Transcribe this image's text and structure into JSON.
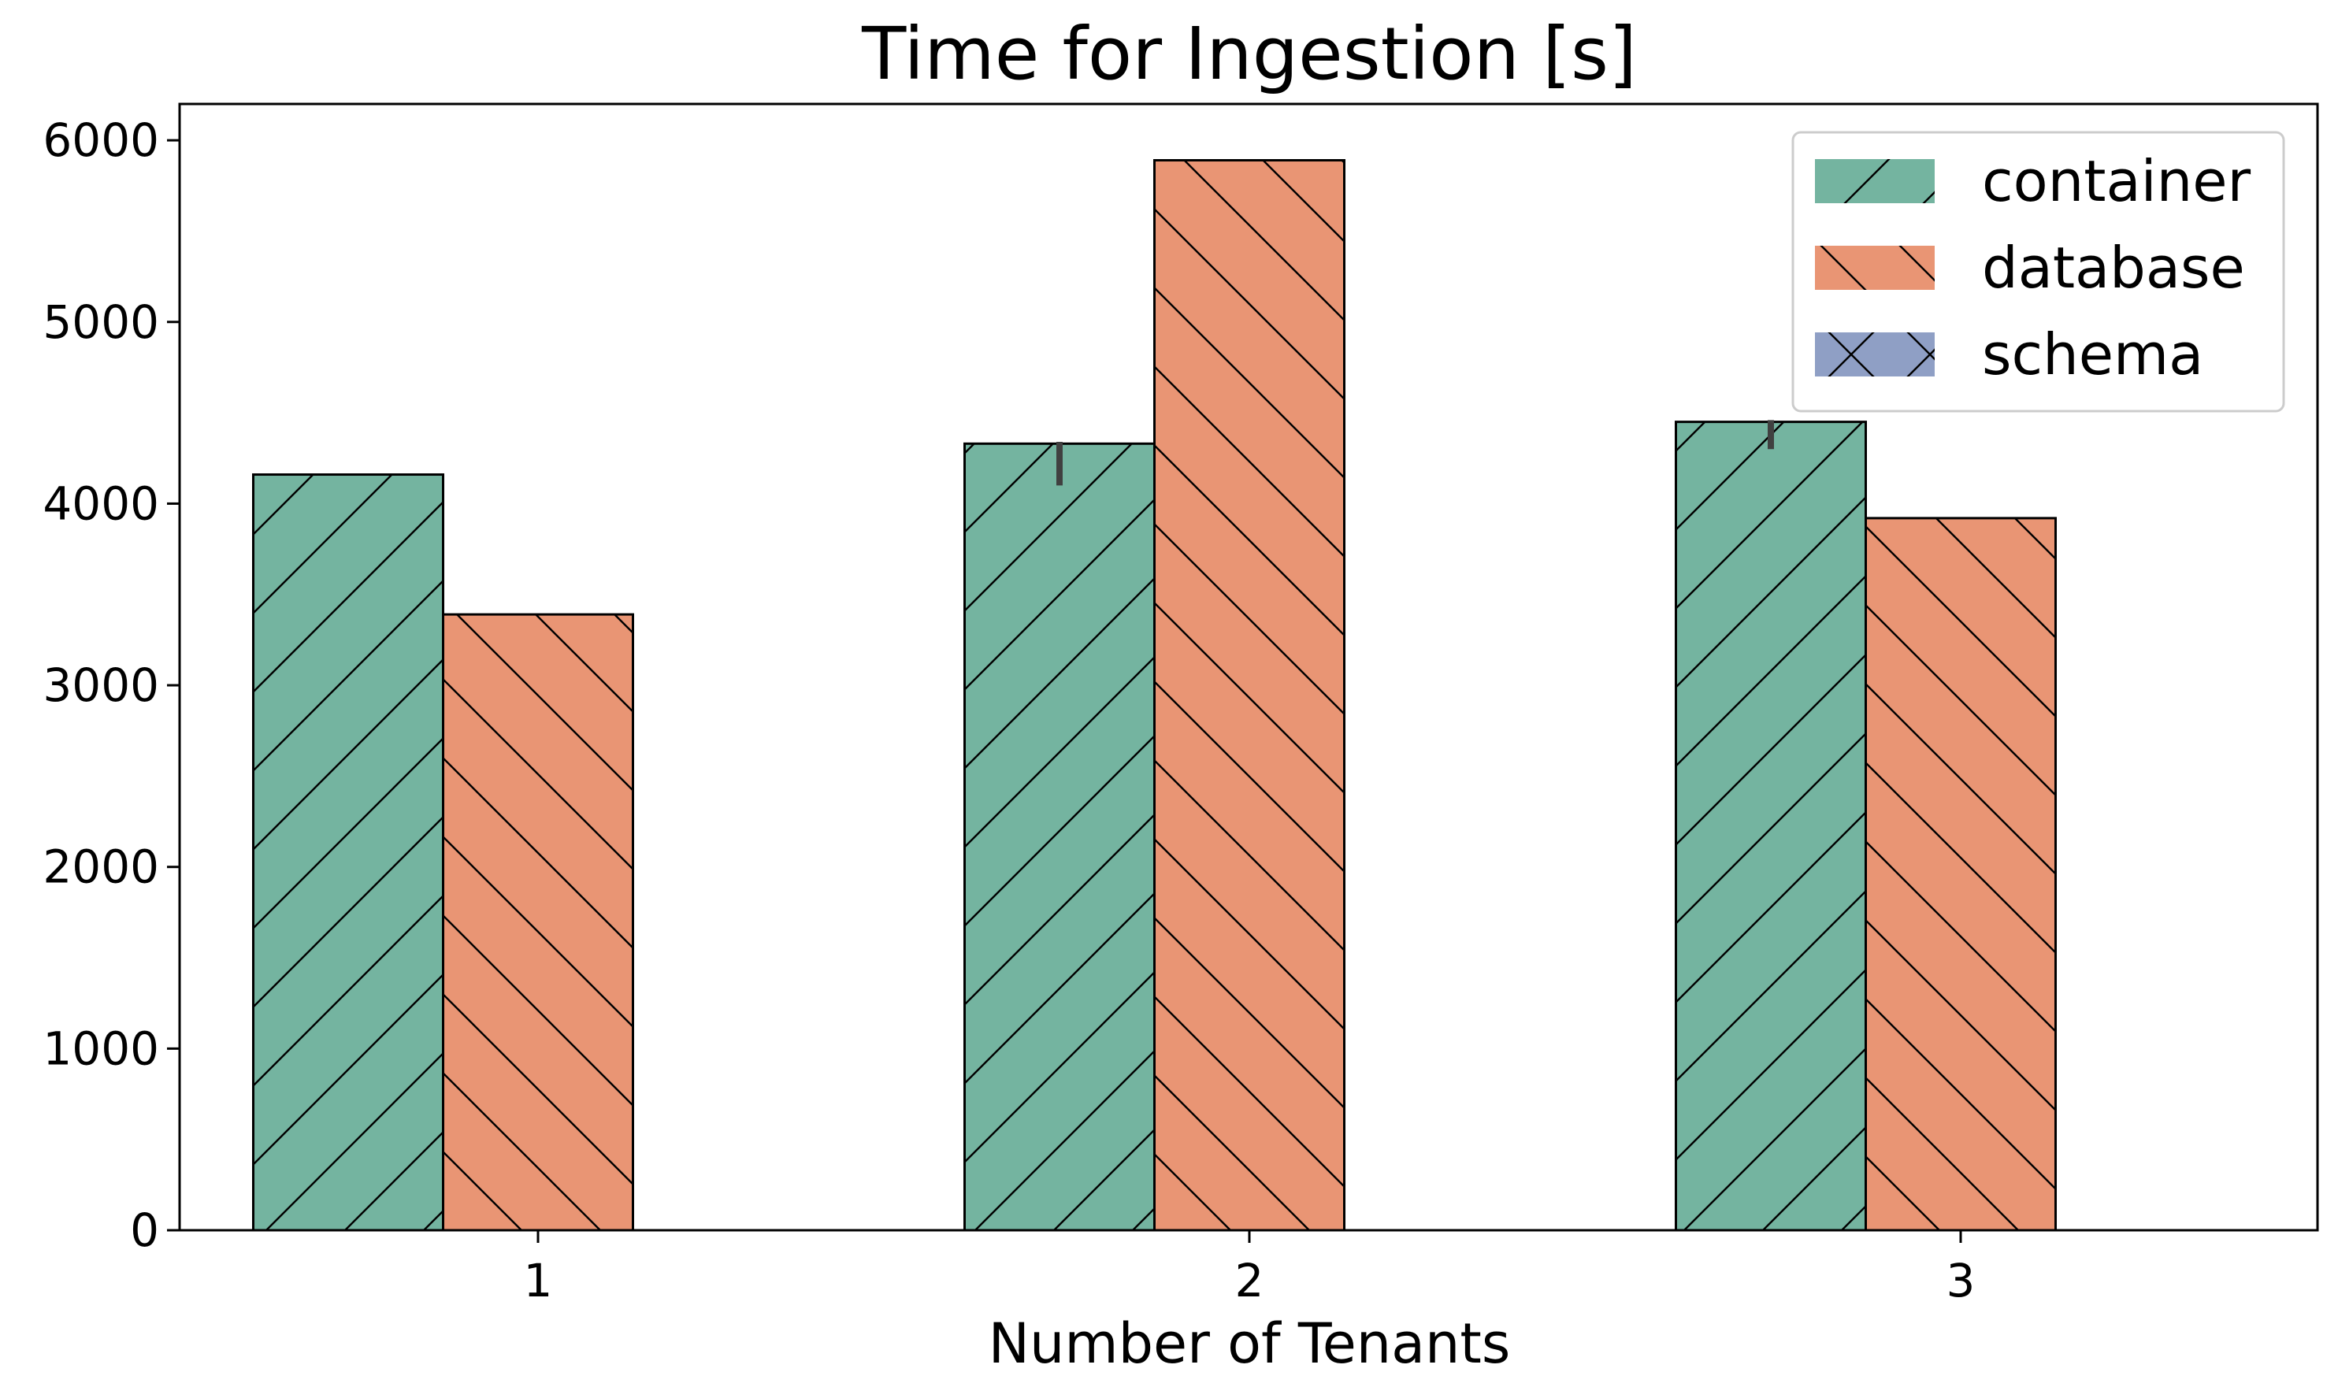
{
  "chart_data": {
    "type": "bar",
    "title": "Time for Ingestion [s]",
    "xlabel": "Number of Tenants",
    "ylabel": "",
    "categories": [
      "1",
      "2",
      "3"
    ],
    "ylim": [
      0,
      6200
    ],
    "yticks": [
      0,
      1000,
      2000,
      3000,
      4000,
      5000,
      6000
    ],
    "grid": false,
    "legend_position": "top-right",
    "series": [
      {
        "name": "container",
        "color": "#74b4a0",
        "hatch": "/",
        "values": [
          4160,
          4330,
          4450
        ],
        "error_bars": [
          null,
          [
            4100,
            4340
          ],
          [
            4300,
            4460
          ]
        ]
      },
      {
        "name": "database",
        "color": "#e99574",
        "hatch": "\\",
        "values": [
          3390,
          5890,
          3920
        ]
      },
      {
        "name": "schema",
        "color": "#8f9fc5",
        "hatch": "x",
        "values": [
          null,
          null,
          null
        ]
      }
    ]
  }
}
